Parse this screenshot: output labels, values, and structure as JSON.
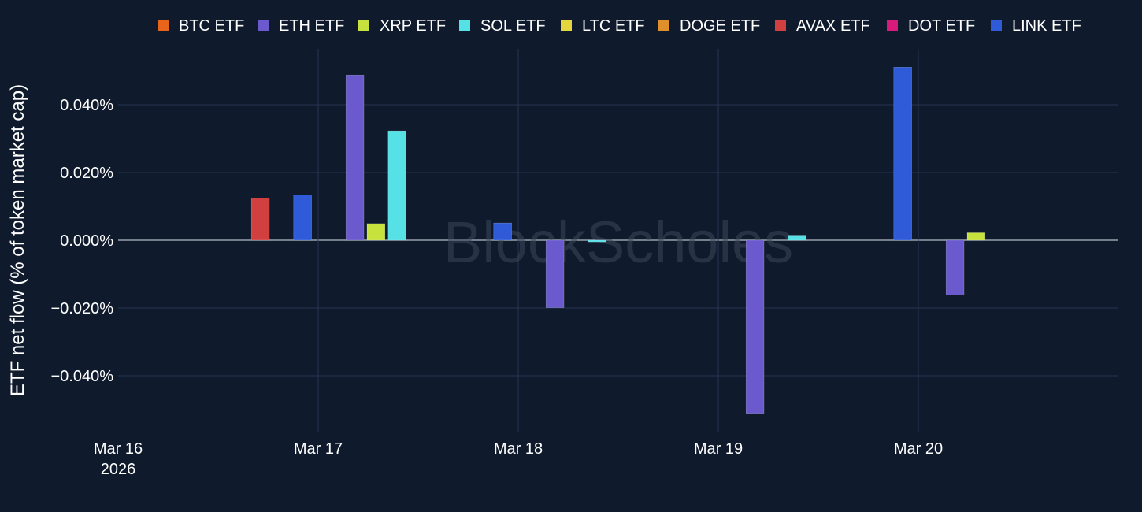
{
  "chart_data": {
    "type": "bar",
    "title": "",
    "xlabel": "",
    "ylabel": "ETF net flow (% of token market cap)",
    "watermark": "BlockScholes",
    "categories": [
      "Mar 16",
      "Mar 17",
      "Mar 18",
      "Mar 19",
      "Mar 20"
    ],
    "x_tick_labels": [
      "Mar 16\n2026",
      "Mar 17",
      "Mar 18",
      "Mar 19",
      "Mar 20"
    ],
    "y_ticks": [
      -0.04,
      -0.02,
      0.0,
      0.02,
      0.04
    ],
    "y_tick_labels": [
      "−0.040%",
      "−0.020%",
      "0.000%",
      "0.020%",
      "0.040%"
    ],
    "ylim": [
      -0.056,
      0.056
    ],
    "grid": true,
    "legend_position": "top",
    "series": [
      {
        "name": "BTC ETF",
        "color": "#e8641b",
        "values": [
          0,
          0,
          0,
          0,
          0
        ]
      },
      {
        "name": "ETH ETF",
        "color": "#6a5acd",
        "values": [
          0,
          0.0488,
          -0.0199,
          -0.0511,
          -0.0162
        ]
      },
      {
        "name": "XRP ETF",
        "color": "#c8e23d",
        "values": [
          0,
          0.0049,
          0,
          0,
          0.0022
        ]
      },
      {
        "name": "SOL ETF",
        "color": "#55e1e6",
        "values": [
          0,
          0.0323,
          -0.0005,
          0.0015,
          0
        ]
      },
      {
        "name": "LTC ETF",
        "color": "#e2d53d",
        "values": [
          0,
          0,
          0,
          0,
          0
        ]
      },
      {
        "name": "DOGE ETF",
        "color": "#e0902a",
        "values": [
          0,
          0,
          0,
          0,
          0
        ]
      },
      {
        "name": "AVAX ETF",
        "color": "#d13f3f",
        "values": [
          0.0124,
          0,
          0,
          0,
          0
        ]
      },
      {
        "name": "DOT ETF",
        "color": "#d81b7a",
        "values": [
          0,
          0,
          0,
          0,
          0
        ]
      },
      {
        "name": "LINK ETF",
        "color": "#2f5bd8",
        "values": [
          0.0134,
          0.0051,
          0,
          0.0511,
          0
        ]
      }
    ]
  }
}
